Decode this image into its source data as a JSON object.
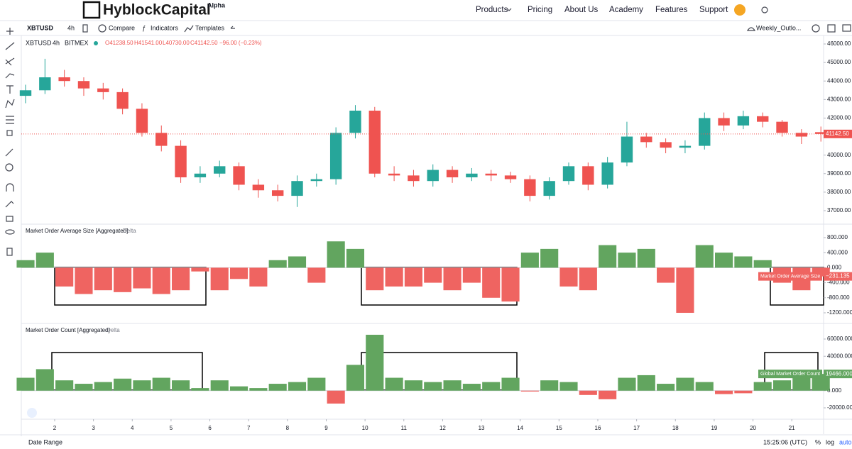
{
  "header": {
    "logo": "HyblockCapital",
    "badge": "Alpha",
    "nav": [
      "Products",
      "Pricing",
      "About Us",
      "Academy",
      "Features",
      "Support"
    ]
  },
  "toolbar": {
    "symbol": "XBTUSD",
    "interval": "4h",
    "compare": "Compare",
    "indicators": "Indicators",
    "templates": "Templates",
    "layout": "Weekly_Outlo..."
  },
  "legend": {
    "symbol": "XBTUSD",
    "interval": "4h",
    "exchange": "BITMEX",
    "open": "O41238.50",
    "high": "H41541.00",
    "low": "L40730.00",
    "close": "C41142.50",
    "change": "−96.00 (−0.23%)"
  },
  "chart_data": [
    {
      "type": "candlestick",
      "x": [
        1.25,
        1.75,
        2.25,
        2.75,
        3.25,
        3.75,
        4.25,
        4.75,
        5.25,
        5.75,
        6.25,
        6.75,
        7.25,
        7.75,
        8.25,
        8.75,
        9.25,
        9.75,
        10.25,
        10.75,
        11.25,
        11.75,
        12.25,
        12.75,
        13.25,
        13.75,
        14.25,
        14.75,
        15.25,
        15.75,
        16.25,
        16.75,
        17.25,
        17.75,
        18.25,
        18.75,
        19.25,
        19.75,
        20.25,
        20.75,
        21.25,
        21.75
      ],
      "open": [
        43200,
        43500,
        44200,
        44000,
        43600,
        43400,
        42500,
        41200,
        40500,
        38800,
        39000,
        39400,
        38400,
        38100,
        37800,
        38600,
        38700,
        41200,
        42400,
        39000,
        38900,
        38600,
        39200,
        38800,
        39000,
        38900,
        38700,
        37800,
        38600,
        39400,
        38400,
        39600,
        41000,
        40700,
        40400,
        40500,
        42000,
        41600,
        42100,
        41800,
        41200,
        41238.5
      ],
      "high": [
        43800,
        45200,
        44600,
        44200,
        43900,
        43600,
        42800,
        41600,
        40800,
        39400,
        39700,
        39600,
        38700,
        38400,
        38900,
        39000,
        41500,
        42700,
        42600,
        39400,
        39200,
        39500,
        39400,
        39300,
        39200,
        39100,
        38900,
        38800,
        39600,
        39600,
        39900,
        41800,
        41200,
        40900,
        40800,
        42300,
        42300,
        42400,
        42300,
        41900,
        41400,
        41541
      ],
      "low": [
        42800,
        43300,
        43700,
        43200,
        43000,
        42200,
        41000,
        40200,
        38500,
        38500,
        38800,
        38100,
        37700,
        37500,
        37200,
        38300,
        38400,
        40900,
        38800,
        38600,
        38300,
        38300,
        38500,
        38600,
        38600,
        38500,
        37500,
        37600,
        38400,
        38100,
        38200,
        39400,
        40400,
        40100,
        40100,
        40300,
        41300,
        41400,
        41500,
        41000,
        40600,
        40730
      ],
      "close": [
        43500,
        44200,
        44000,
        43600,
        43400,
        42500,
        41200,
        40500,
        38800,
        39000,
        39400,
        38400,
        38100,
        37800,
        38600,
        38700,
        41200,
        42400,
        39000,
        38900,
        38600,
        39200,
        38800,
        39000,
        38900,
        38700,
        37800,
        38600,
        39400,
        38400,
        39600,
        41000,
        40700,
        40400,
        40500,
        42000,
        41600,
        42100,
        41800,
        41200,
        41000,
        41142.5
      ],
      "xlim": [
        1.14,
        21.82
      ],
      "xticks": [
        2,
        3,
        4,
        5,
        6,
        7,
        8,
        9,
        10,
        11,
        12,
        13,
        14,
        15,
        16,
        17,
        18,
        19,
        20,
        21
      ],
      "ylim": [
        36310,
        46383
      ],
      "yticks": [
        {
          "value": 37000,
          "label": "37000.00"
        },
        {
          "value": 38000,
          "label": "38000.00"
        },
        {
          "value": 39000,
          "label": "39000.00"
        },
        {
          "value": 40000,
          "label": "40000.00"
        },
        {
          "value": 41000,
          "label": "41000.00"
        },
        {
          "value": 42000,
          "label": "42000.00"
        },
        {
          "value": 43000,
          "label": "43000.00"
        },
        {
          "value": 44000,
          "label": "44000.00"
        },
        {
          "value": 45000,
          "label": "45000.00"
        },
        {
          "value": 46000,
          "label": "46000.00"
        }
      ],
      "last_label": "41142.50",
      "up_color": "#26a69a",
      "down_color": "#ef5350"
    },
    {
      "type": "bar",
      "title": "Market Order Average Size [Aggregated]",
      "subtitle": "Delta",
      "series_label": "Market Order Average Size",
      "x": [
        1.25,
        1.75,
        2.25,
        2.75,
        3.25,
        3.75,
        4.25,
        4.75,
        5.25,
        5.75,
        6.25,
        6.75,
        7.25,
        7.75,
        8.25,
        8.75,
        9.25,
        9.75,
        10.25,
        10.75,
        11.25,
        11.75,
        12.25,
        12.75,
        13.25,
        13.75,
        14.25,
        14.75,
        15.25,
        15.75,
        16.25,
        16.75,
        17.25,
        17.75,
        18.25,
        18.75,
        19.25,
        19.75,
        20.25,
        20.75,
        21.25,
        21.75
      ],
      "values": [
        200,
        400,
        -500,
        -700,
        -600,
        -650,
        -550,
        -700,
        -600,
        -100,
        -600,
        -300,
        -500,
        200,
        300,
        -400,
        700,
        500,
        -600,
        -500,
        -500,
        -400,
        -600,
        -400,
        -800,
        -900,
        400,
        500,
        -500,
        -600,
        600,
        400,
        500,
        -400,
        -1200,
        600,
        400,
        300,
        200,
        -400,
        -600,
        -231.135
      ],
      "xlim": [
        1.14,
        21.82
      ],
      "ylim": [
        -1464,
        1120
      ],
      "yticks": [
        {
          "value": 800,
          "label": "800.000"
        },
        {
          "value": 400,
          "label": "400.000"
        },
        {
          "value": 0,
          "label": "0.000"
        },
        {
          "value": -400,
          "label": "-400.000"
        },
        {
          "value": -800,
          "label": "-800.000"
        },
        {
          "value": -1200,
          "label": "-1200.000"
        }
      ],
      "last_label": "−231.135",
      "up_color": "#62a55f",
      "down_color": "#ef6461"
    },
    {
      "type": "bar",
      "title": "Market Order Count [Aggregated]",
      "subtitle": "Delta",
      "series_label": "Global Market Order Count",
      "x": [
        1.25,
        1.75,
        2.25,
        2.75,
        3.25,
        3.75,
        4.25,
        4.75,
        5.25,
        5.75,
        6.25,
        6.75,
        7.25,
        7.75,
        8.25,
        8.75,
        9.25,
        9.75,
        10.25,
        10.75,
        11.25,
        11.75,
        12.25,
        12.75,
        13.25,
        13.75,
        14.25,
        14.75,
        15.25,
        15.75,
        16.25,
        16.75,
        17.25,
        17.75,
        18.25,
        18.75,
        19.25,
        19.75,
        20.25,
        20.75,
        21.25,
        21.75
      ],
      "values": [
        15000,
        25000,
        12000,
        8000,
        10000,
        14000,
        12000,
        15000,
        12000,
        3000,
        12000,
        5000,
        3000,
        8000,
        10000,
        15000,
        -15000,
        30000,
        65000,
        15000,
        12000,
        10000,
        12000,
        8000,
        10000,
        15000,
        -1000,
        12000,
        10000,
        -5000,
        -10000,
        15000,
        18000,
        8000,
        15000,
        10000,
        -4000,
        -3000,
        10000,
        12000,
        15000,
        19466
      ],
      "xlim": [
        1.14,
        21.82
      ],
      "ylim": [
        -32371,
        76495
      ],
      "yticks": [
        {
          "value": 60000,
          "label": "60000.000"
        },
        {
          "value": 40000,
          "label": "40000.000"
        },
        {
          "value": 20000,
          "label": "20000.000"
        },
        {
          "value": 0,
          "label": "0.000"
        },
        {
          "value": -20000,
          "label": "-20000.000"
        }
      ],
      "last_label": "19466.000",
      "up_color": "#62a55f",
      "down_color": "#ef6461"
    }
  ],
  "footer": {
    "date_range": "Date Range",
    "time": "15:25:06 (UTC)",
    "percent": "%",
    "log": "log",
    "auto": "auto"
  }
}
